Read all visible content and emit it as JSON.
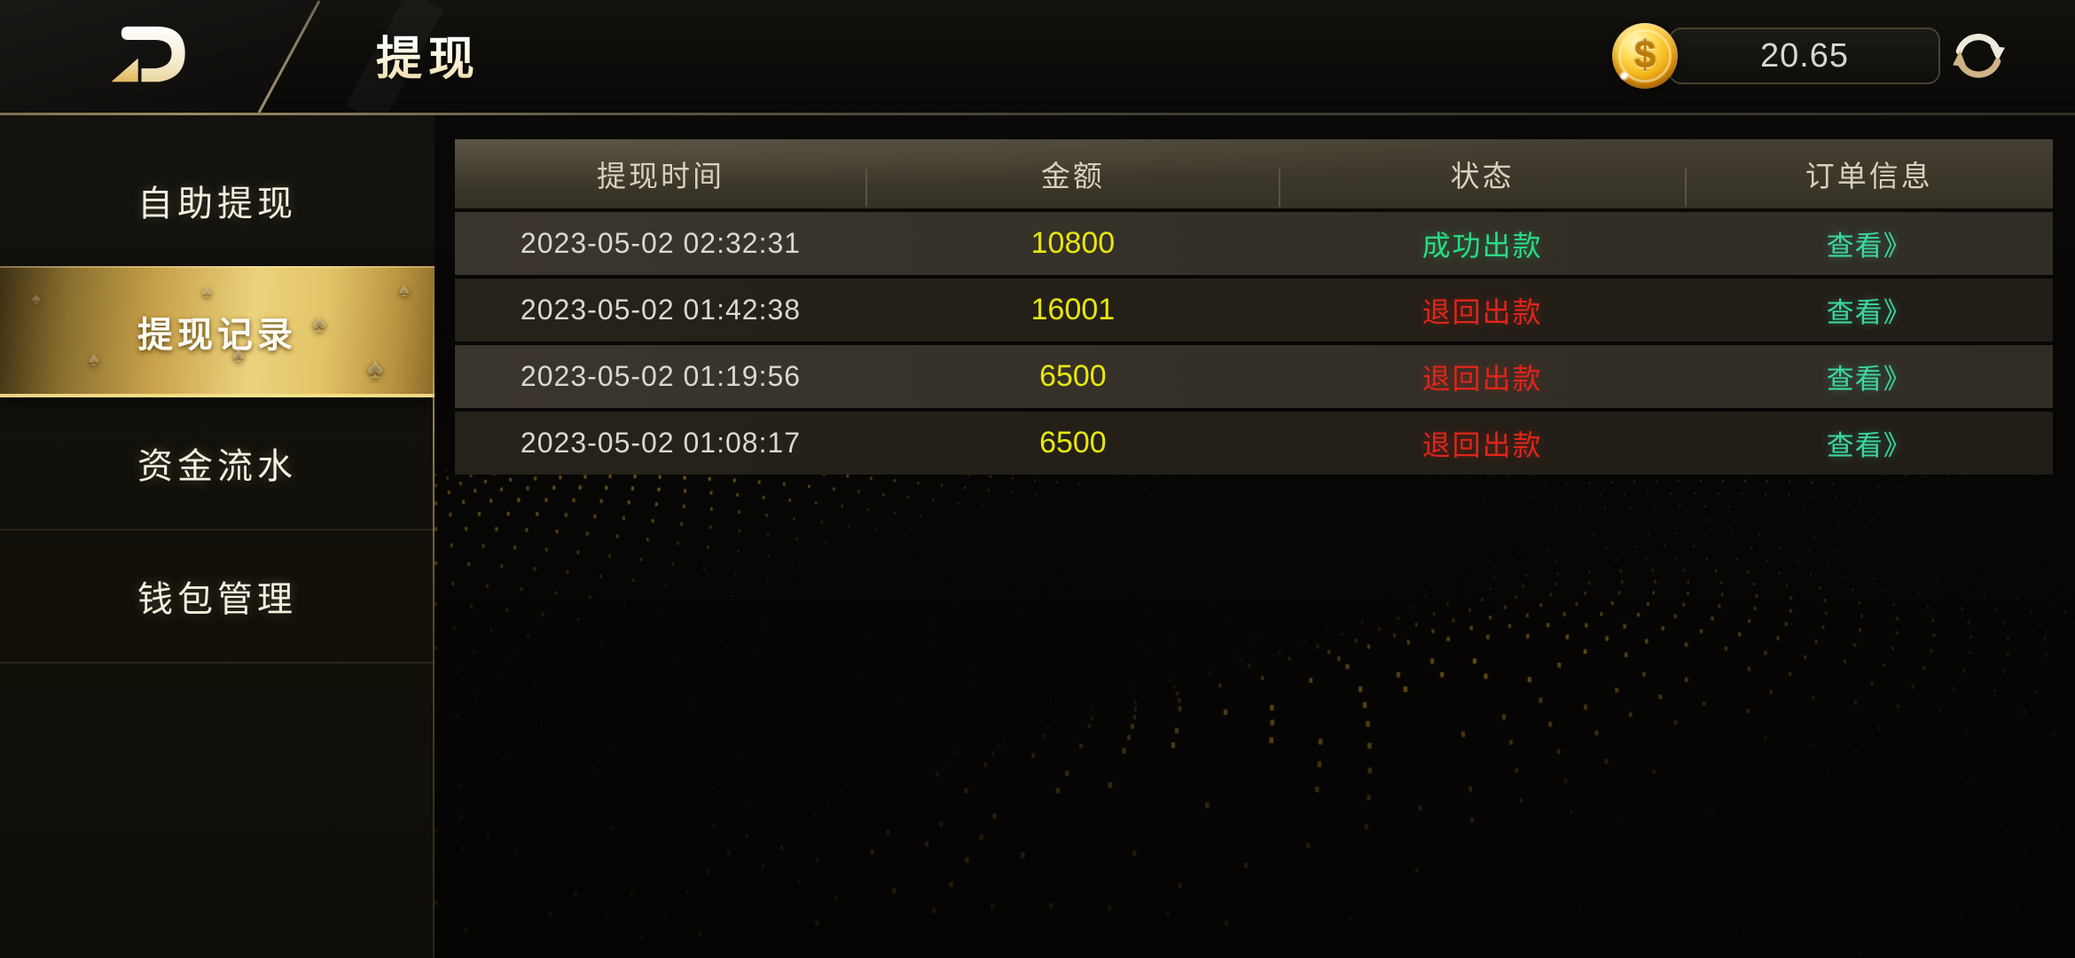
{
  "topbar": {
    "title": "提现",
    "logo_icon": "brand-d-logo",
    "balance": {
      "coin_icon": "gold-dollar-coin",
      "coin_glyph": "$",
      "value": "20.65",
      "refresh_icon": "refresh-arrows"
    }
  },
  "sidebar": {
    "items": [
      {
        "label": "自助提现",
        "active": false
      },
      {
        "label": "提现记录",
        "active": true
      },
      {
        "label": "资金流水",
        "active": false
      },
      {
        "label": "钱包管理",
        "active": false
      }
    ]
  },
  "table": {
    "headers": [
      "提现时间",
      "金额",
      "状态",
      "订单信息"
    ],
    "rows": [
      {
        "time": "2023-05-02 02:32:31",
        "amount": "10800",
        "status": "成功出款",
        "status_type": "success",
        "action": "查看》"
      },
      {
        "time": "2023-05-02 01:42:38",
        "amount": "16001",
        "status": "退回出款",
        "status_type": "returned",
        "action": "查看》"
      },
      {
        "time": "2023-05-02 01:19:56",
        "amount": "6500",
        "status": "退回出款",
        "status_type": "returned",
        "action": "查看》"
      },
      {
        "time": "2023-05-02 01:08:17",
        "amount": "6500",
        "status": "退回出款",
        "status_type": "returned",
        "action": "查看》"
      }
    ]
  },
  "colors": {
    "amount": "#e8e70a",
    "status_success": "#2bdb84",
    "status_returned": "#e0251a",
    "action_link": "#3cd7a1",
    "accent_gold": "#e3c06a",
    "background": "#070605"
  }
}
